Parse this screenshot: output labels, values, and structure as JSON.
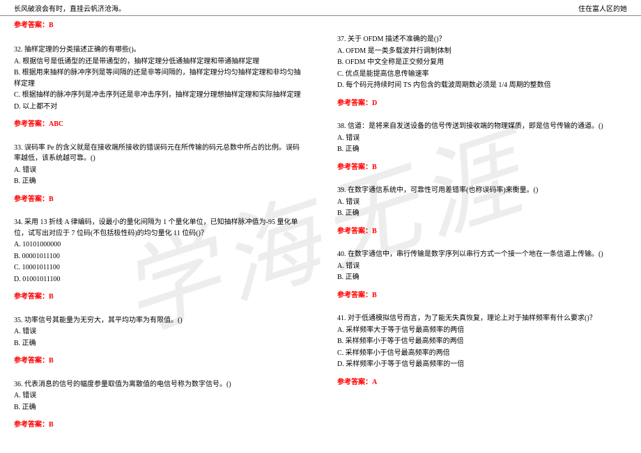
{
  "header": {
    "left": "长风破浪会有时，直挂云帆济沧海。",
    "right": "住在富人区的她"
  },
  "watermark": "学海无涯",
  "answer_prefix": "参考答案：",
  "left_top_answer": "B",
  "left": [
    {
      "stem": "32. 抽样定理的分类描述正确的有哪些()。",
      "opts": [
        "A. 根据信号是低通型的还是带通型的，抽样定理分低通抽样定理和带通抽样定理",
        "B. 根据用来抽样的脉冲序列是等间隔的还是非等间隔的，抽样定理分均匀抽样定理和非均匀抽样定理",
        "C. 根据抽样的脉冲序列是冲击序列还是非冲击序列，抽样定理分理想抽样定理和实际抽样定理",
        "D. 以上都不对"
      ],
      "ans": "ABC"
    },
    {
      "stem": "33. 误码率 Pe 的含义就是在接收端所接收的错误码元在所传输的码元总数中所占的比例。误码率越低，该系统越可靠。()",
      "opts": [
        "A. 错误",
        "B. 正确"
      ],
      "ans": "B"
    },
    {
      "stem": "34. 采用 13 折线 A 律编码，设最小的量化间隔为 1 个量化单位，已知抽样脉冲值为-95 量化单位，试写出对应于 7 位码(不包括极性码)的均匀量化 11 位码()？",
      "opts": [
        "A. 10101000000",
        "B. 00001011100",
        "C. 10001011100",
        "D. 01001011100"
      ],
      "ans": "B"
    },
    {
      "stem": "35. 功率信号其能量为无穷大，其平均功率为有限值。()",
      "opts": [
        "A. 错误",
        "B. 正确"
      ],
      "ans": "B"
    },
    {
      "stem": "36. 代表消息的信号的幅度参量取值为离散值的电信号称为数字信号。()",
      "opts": [
        "A. 错误",
        "B. 正确"
      ],
      "ans": "B"
    }
  ],
  "right": [
    {
      "stem": "37. 关于 OFDM 描述不准确的是()？",
      "opts": [
        "A. OFDM 是一类多载波并行调制体制",
        "B. OFDM 中文全称是正交频分复用",
        "C. 优点是能提高信息传输速率",
        "D. 每个码元持续时间 TS 内包含的载波周期数必须是 1/4 周期的整数倍"
      ],
      "ans": "D"
    },
    {
      "stem": "38. 信道：是将来自发送设备的信号传送到接收端的物理媒质，即是信号传输的通道。()",
      "opts": [
        "A. 错误",
        "B. 正确"
      ],
      "ans": "B"
    },
    {
      "stem": "39. 在数字通信系统中，可靠性可用差错率(也称误码率)来衡量。()",
      "opts": [
        "A. 错误",
        "B. 正确"
      ],
      "ans": "B"
    },
    {
      "stem": "40. 在数字通信中，串行传输是数字序列以串行方式一个接一个地在一条信道上传输。()",
      "opts": [
        "A. 错误",
        "B. 正确"
      ],
      "ans": "B"
    },
    {
      "stem": "41. 对于低通模拟信号而言，为了能无失真恢复，理论上对于抽样频率有什么要求()？",
      "opts": [
        "A. 采样频率大于等于信号最高频率的两倍",
        "B. 采样频率小于等于信号最高频率的两倍",
        "C. 采样频率小于信号最高频率的两倍",
        "D. 采样频率小于等于信号最高频率的一倍"
      ],
      "ans": "A"
    }
  ]
}
